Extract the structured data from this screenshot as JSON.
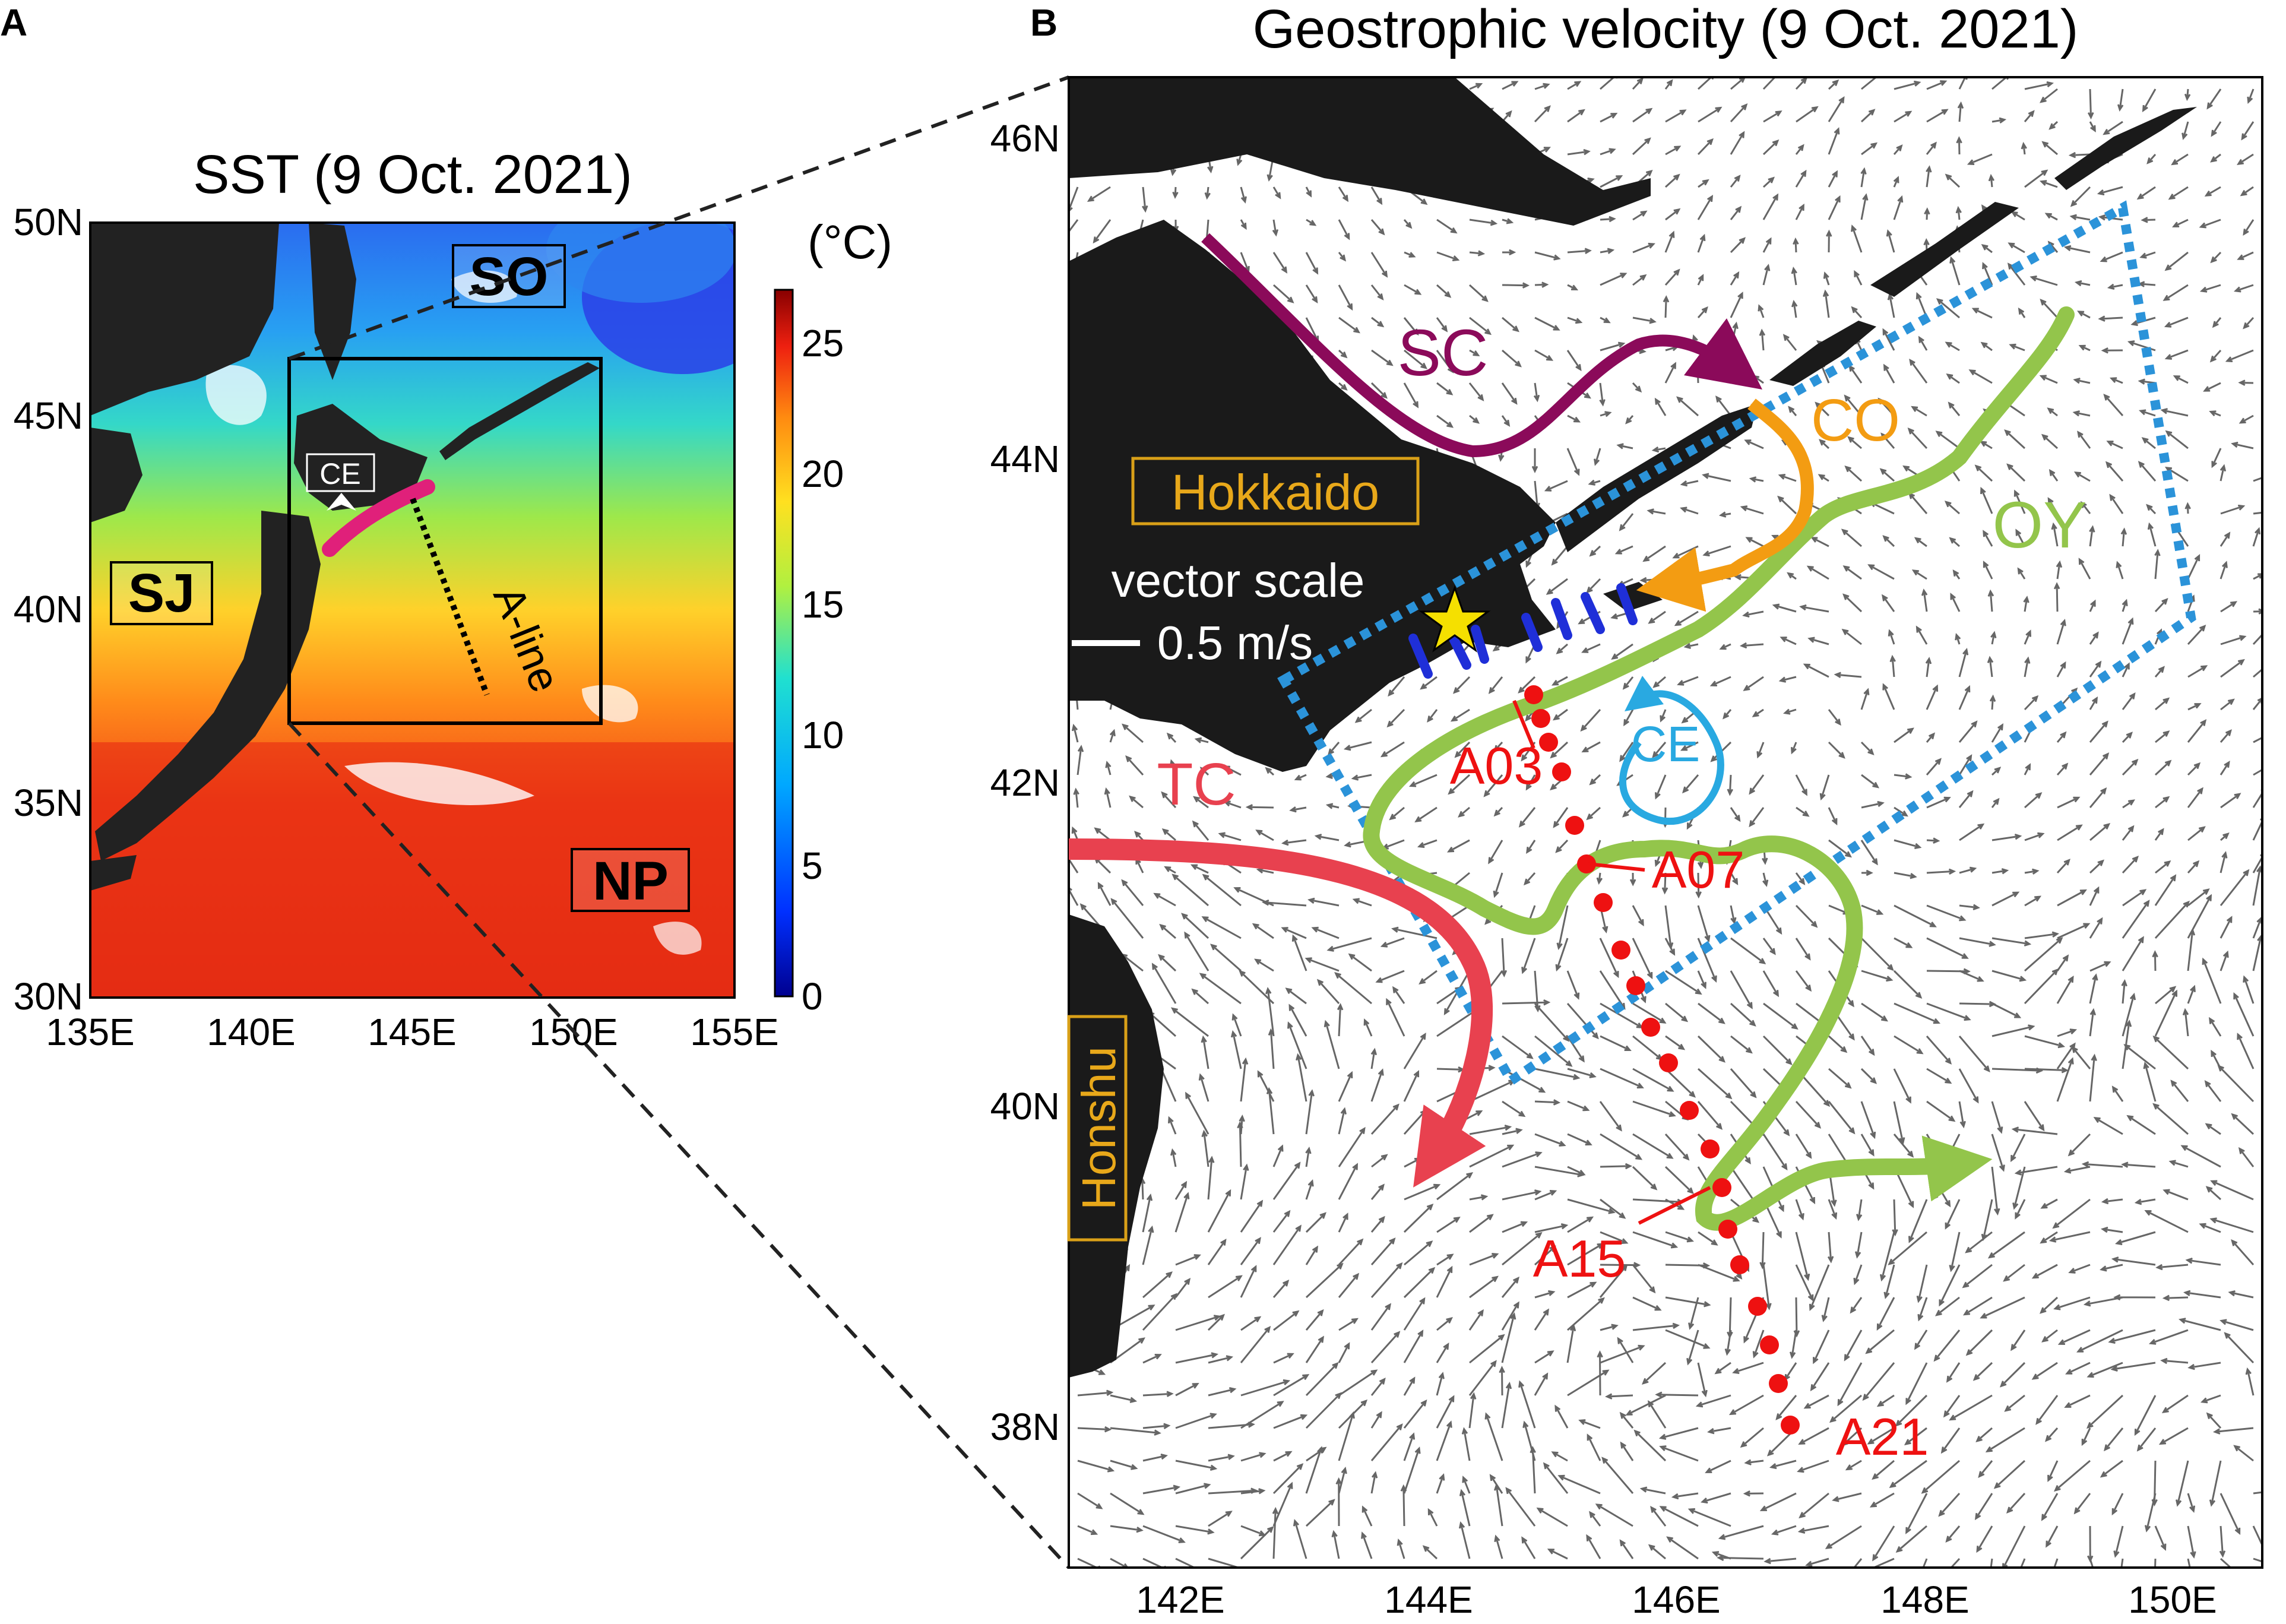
{
  "panel_a": {
    "letter": "A",
    "title": "SST (9 Oct. 2021)",
    "x_ticks": [
      "135E",
      "140E",
      "145E",
      "150E",
      "155E"
    ],
    "y_ticks": [
      "30N",
      "35N",
      "40N",
      "45N",
      "50N"
    ],
    "colorbar": {
      "unit": "(°C)",
      "ticks": [
        "0",
        "5",
        "10",
        "15",
        "20",
        "25"
      ],
      "range": [
        0,
        27
      ]
    },
    "region_labels": {
      "so": "SO",
      "sj": "SJ",
      "np": "NP"
    },
    "ce_label": "CE",
    "aline_label": "A-line",
    "colors": {
      "land": "#222222",
      "eddy_marker": "#e0207a",
      "box": "#000000"
    }
  },
  "panel_b": {
    "letter": "B",
    "title": "Geostrophic velocity (9 Oct. 2021)",
    "x_ticks": [
      "142E",
      "144E",
      "146E",
      "148E",
      "150E"
    ],
    "y_ticks": [
      "38N",
      "40N",
      "42N",
      "44N",
      "46N"
    ],
    "vector_scale": {
      "label": "vector scale",
      "value": "0.5 m/s"
    },
    "place_labels": {
      "hokkaido": "Hokkaido",
      "honshu": "Honshu"
    },
    "current_labels": {
      "sc": "SC",
      "co": "CO",
      "oy": "OY",
      "tc": "TC",
      "ce": "CE"
    },
    "stations": {
      "a03": "A03",
      "a07": "A07",
      "a15": "A15",
      "a21": "A21"
    },
    "colors": {
      "sc": "#8b0a5a",
      "co": "#f39c12",
      "oy": "#93c54b",
      "tc": "#e8414f",
      "ce": "#29a9e1",
      "stations": "#ee1111",
      "box": "#2b93d9",
      "shelf_lines": "#1f2fd8",
      "star": "#f5e000",
      "label_box": "#d9a018",
      "vectors": "#666666",
      "land": "#1a1a1a"
    }
  }
}
